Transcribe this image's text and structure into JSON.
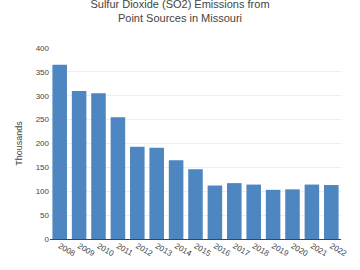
{
  "chart_data": {
    "type": "bar",
    "title": "Sulfur Dioxide (SO2) Emissions from\nPoint Sources in Missouri",
    "ylabel": "Thousands",
    "categories": [
      "2008",
      "2009",
      "2010",
      "2011",
      "2012",
      "2013",
      "2014",
      "2015",
      "2016",
      "2017",
      "2018",
      "2019",
      "2020",
      "2021",
      "2022"
    ],
    "values": [
      365,
      310,
      305,
      255,
      193,
      191,
      165,
      146,
      112,
      117,
      114,
      103,
      104,
      114,
      113
    ],
    "color": "#4d86c0",
    "ylim": [
      0,
      400
    ],
    "yticks": [
      0,
      50,
      100,
      150,
      200,
      250,
      300,
      350,
      400
    ],
    "grid": true
  }
}
